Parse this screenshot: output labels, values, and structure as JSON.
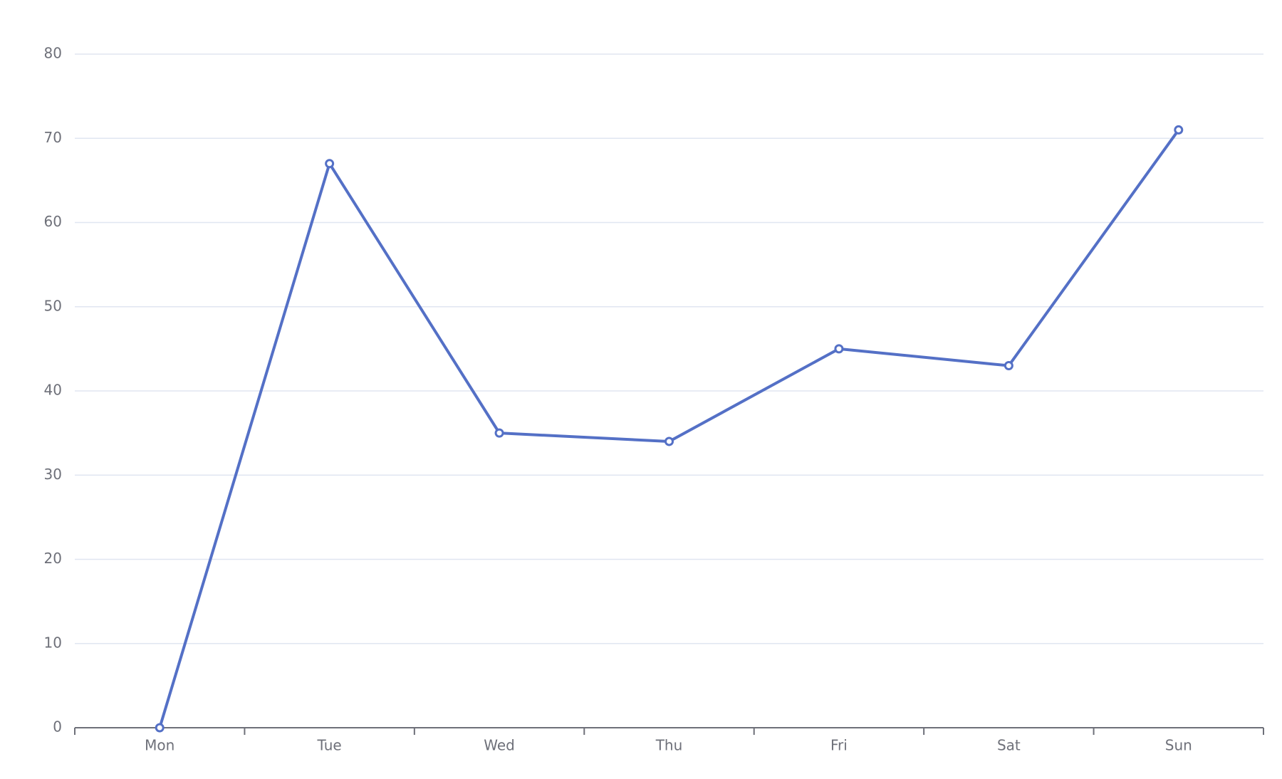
{
  "chart_data": {
    "type": "line",
    "categories": [
      "Mon",
      "Tue",
      "Wed",
      "Thu",
      "Fri",
      "Sat",
      "Sun"
    ],
    "series": [
      {
        "color": "#5470c6",
        "values": [
          0,
          67,
          35,
          34,
          45,
          43,
          71
        ]
      }
    ],
    "ylim": [
      0,
      80
    ],
    "yticks": [
      0,
      10,
      20,
      30,
      40,
      50,
      60,
      70,
      80
    ],
    "grid": true
  }
}
